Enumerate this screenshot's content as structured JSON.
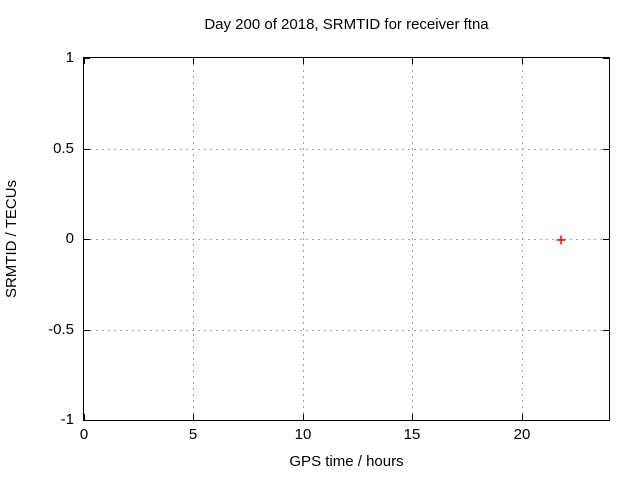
{
  "chart_data": {
    "type": "scatter",
    "title": "Day 200 of 2018, SRMTID for receiver ftna",
    "xlabel": "GPS time / hours",
    "ylabel": "SRMTID / TECUs",
    "xlim": [
      0,
      24
    ],
    "ylim": [
      -1,
      1
    ],
    "xticks": {
      "values": [
        0,
        5,
        10,
        15,
        20
      ],
      "labels": [
        "0",
        "5",
        "10",
        "15",
        "20"
      ]
    },
    "yticks": {
      "values": [
        -1,
        -0.5,
        0,
        0.5,
        1
      ],
      "labels": [
        "-1",
        "-0.5",
        "0",
        "0.5",
        "1"
      ]
    },
    "grid": true,
    "legend": "none",
    "series": [
      {
        "name": "SRMTID",
        "marker": "plus",
        "color": "#ff0000",
        "points": [
          {
            "x": 21.8,
            "y": 0.0
          }
        ]
      }
    ],
    "colors": {
      "background": "#ffffff",
      "axis": "#000000",
      "grid": "#a0a0a0",
      "text": "#000000"
    }
  }
}
